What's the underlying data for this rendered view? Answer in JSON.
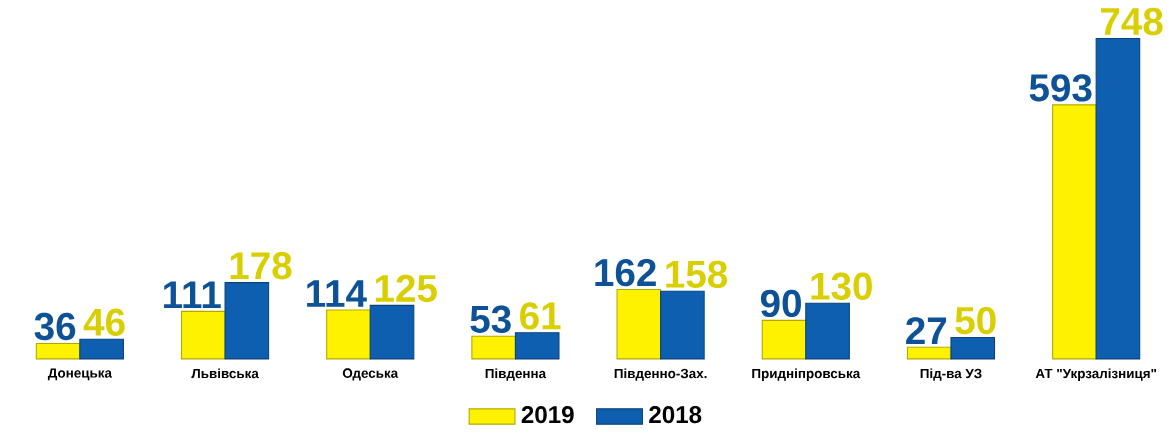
{
  "chart_data": {
    "type": "bar",
    "categories": [
      "Донецька",
      "Львівська",
      "Одеська",
      "Південна",
      "Південно-Зах.",
      "Придніпровська",
      "Під-ва УЗ",
      "АТ \"Укрзалізниця\""
    ],
    "series": [
      {
        "name": "2019",
        "color": "#fff200",
        "values": [
          36,
          111,
          114,
          53,
          162,
          90,
          27,
          593
        ]
      },
      {
        "name": "2018",
        "color": "#0f5fb0",
        "values": [
          46,
          178,
          125,
          61,
          158,
          130,
          50,
          748
        ]
      }
    ],
    "data_labels": true,
    "legend": "bottom"
  }
}
